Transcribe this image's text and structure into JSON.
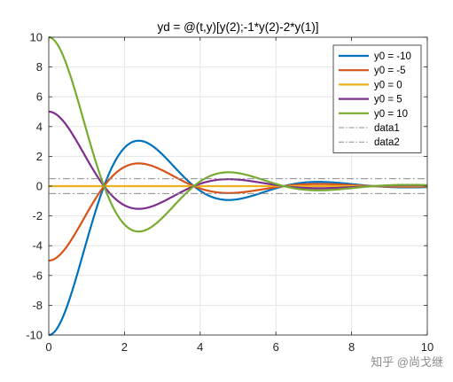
{
  "chart_data": {
    "type": "line",
    "title": "yd = @(t,y)[y(2);-1*y(2)-2*y(1)]",
    "xlabel": "",
    "ylabel": "",
    "xlim": [
      0,
      10
    ],
    "ylim": [
      -10,
      10
    ],
    "x_ticks": [
      0,
      2,
      4,
      6,
      8,
      10
    ],
    "y_ticks": [
      -10,
      -8,
      -6,
      -4,
      -2,
      0,
      2,
      4,
      6,
      8,
      10
    ],
    "grid": true,
    "legend_position": "top-right",
    "series": [
      {
        "name": "y0 = -10",
        "color": "#0072BD",
        "y0": -10,
        "style": "solid"
      },
      {
        "name": "y0 = -5",
        "color": "#D95319",
        "y0": -5,
        "style": "solid"
      },
      {
        "name": "y0 = 0",
        "color": "#EDB120",
        "y0": 0,
        "style": "solid"
      },
      {
        "name": "y0 = 5",
        "color": "#7E2F8E",
        "y0": 5,
        "style": "solid"
      },
      {
        "name": "y0 = 10",
        "color": "#77AC30",
        "y0": 10,
        "style": "solid"
      },
      {
        "name": "data1",
        "color": "#8c8c8c",
        "constant": 0.5,
        "style": "dashdot"
      },
      {
        "name": "data2",
        "color": "#8c8c8c",
        "constant": -0.5,
        "style": "dashdot"
      }
    ]
  },
  "watermark": "知乎 @尚戈继"
}
